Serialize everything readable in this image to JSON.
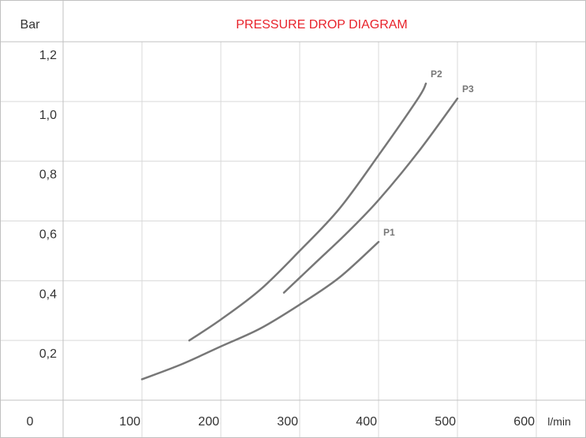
{
  "chart_data": {
    "type": "line",
    "title": "PRESSURE DROP DIAGRAM",
    "ylabel": "Bar",
    "xlabel": "l/min",
    "origin_label": "0",
    "x_ticks": [
      "100",
      "200",
      "300",
      "400",
      "500",
      "600"
    ],
    "y_ticks": [
      "1,2",
      "1,0",
      "0,8",
      "0,6",
      "0,4",
      "0,2"
    ],
    "xlim": [
      0,
      600
    ],
    "ylim": [
      0,
      1.2
    ],
    "grid": true,
    "series": [
      {
        "name": "P1",
        "points": [
          [
            100,
            0.07
          ],
          [
            150,
            0.12
          ],
          [
            200,
            0.18
          ],
          [
            250,
            0.24
          ],
          [
            300,
            0.32
          ],
          [
            350,
            0.41
          ],
          [
            400,
            0.53
          ]
        ]
      },
      {
        "name": "P2",
        "points": [
          [
            160,
            0.2
          ],
          [
            200,
            0.27
          ],
          [
            250,
            0.37
          ],
          [
            300,
            0.5
          ],
          [
            350,
            0.64
          ],
          [
            400,
            0.82
          ],
          [
            450,
            1.01
          ],
          [
            460,
            1.06
          ]
        ]
      },
      {
        "name": "P3",
        "points": [
          [
            280,
            0.36
          ],
          [
            320,
            0.46
          ],
          [
            360,
            0.56
          ],
          [
            400,
            0.67
          ],
          [
            450,
            0.83
          ],
          [
            500,
            1.01
          ]
        ]
      }
    ],
    "colors": {
      "line": "#777777",
      "grid": "#d9d9d9",
      "border": "#c0c0c0",
      "title": "#e8232b",
      "origin": "#e8232b",
      "series_label": "#777777"
    }
  }
}
